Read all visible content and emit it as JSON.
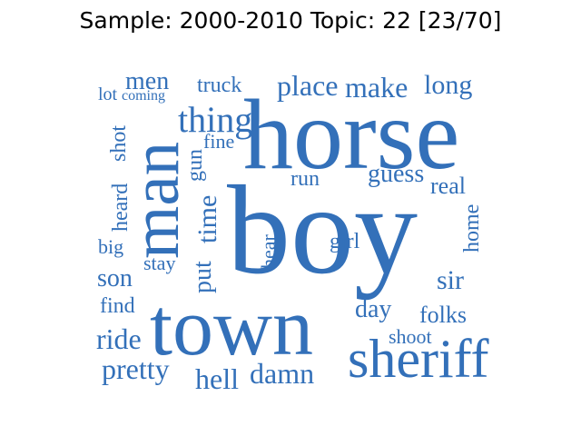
{
  "title": "Sample: 2000-2010 Topic: 22 [23/70]",
  "word_color": "#3370B9",
  "words": [
    "horse",
    "boy",
    "town",
    "man",
    "sheriff",
    "thing",
    "place",
    "make",
    "long",
    "men",
    "truck",
    "lot",
    "coming",
    "shot",
    "fine",
    "gun",
    "run",
    "guess",
    "real",
    "heard",
    "time",
    "put",
    "home",
    "big",
    "girl",
    "hear",
    "stay",
    "son",
    "sir",
    "find",
    "day",
    "folks",
    "ride",
    "shoot",
    "pretty",
    "hell",
    "damn"
  ]
}
